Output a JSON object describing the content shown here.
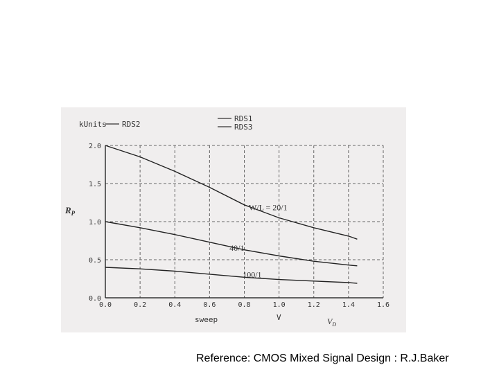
{
  "chart_data": {
    "type": "line",
    "unit_label": "kUnits",
    "ylabel": "R_P",
    "ylabel_main": "R",
    "ylabel_sub": "P",
    "xlabel_sweep": "sweep",
    "xlabel_unit": "V",
    "xlabel_var": "V",
    "xlabel_var_sub": "D",
    "xlim": [
      0.0,
      1.6
    ],
    "ylim": [
      0.0,
      2.0
    ],
    "xticks": [
      "0.0",
      "0.2",
      "0.4",
      "0.6",
      "0.8",
      "1.0",
      "1.2",
      "1.4",
      "1.6"
    ],
    "yticks": [
      "0.0",
      "0.5",
      "1.0",
      "1.5",
      "2.0"
    ],
    "grid": true,
    "legend_position": "top",
    "series": [
      {
        "name": "RDS2",
        "annotation": "W/L = 20/1",
        "x": [
          0.0,
          0.2,
          0.4,
          0.6,
          0.8,
          1.0,
          1.2,
          1.4,
          1.45
        ],
        "y": [
          2.0,
          1.85,
          1.66,
          1.45,
          1.22,
          1.05,
          0.92,
          0.81,
          0.77
        ]
      },
      {
        "name": "RDS1",
        "annotation": "40/1",
        "x": [
          0.0,
          0.2,
          0.4,
          0.6,
          0.8,
          1.0,
          1.2,
          1.4,
          1.45
        ],
        "y": [
          1.0,
          0.92,
          0.83,
          0.73,
          0.63,
          0.55,
          0.48,
          0.43,
          0.42
        ]
      },
      {
        "name": "RDS3",
        "annotation": "100/1",
        "x": [
          0.0,
          0.2,
          0.4,
          0.6,
          0.8,
          1.0,
          1.2,
          1.4,
          1.45
        ],
        "y": [
          0.4,
          0.38,
          0.35,
          0.31,
          0.27,
          0.24,
          0.22,
          0.2,
          0.19
        ]
      }
    ]
  },
  "reference": "Reference: CMOS Mixed Signal Design : R.J.Baker"
}
